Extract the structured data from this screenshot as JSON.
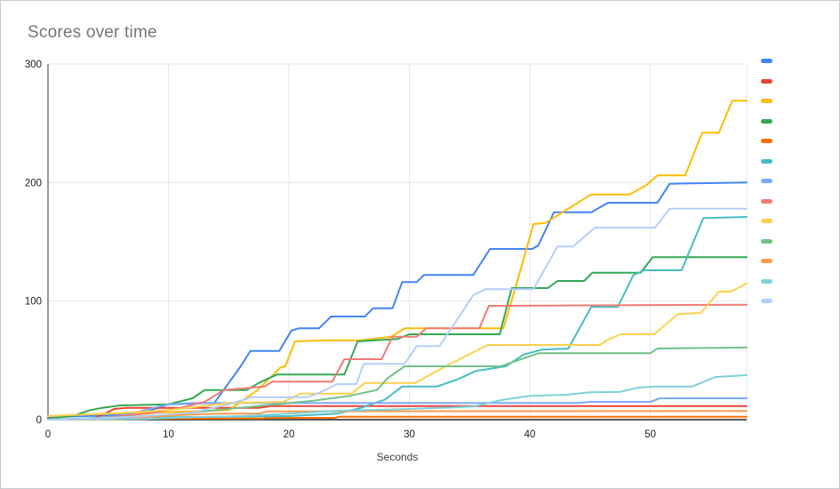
{
  "window": {
    "background": "#ffffff",
    "frame_border_color": "#c9cccf"
  },
  "chart_data": {
    "type": "line",
    "title": "Scores over time",
    "title_color": "#757575",
    "xlabel": "Seconds",
    "ylabel": "",
    "xlim": [
      0,
      58
    ],
    "ylim": [
      0,
      300
    ],
    "x_ticks": [
      0,
      10,
      20,
      30,
      40,
      50
    ],
    "y_ticks": [
      0,
      100,
      200,
      300
    ],
    "grid": true,
    "gridline_color": "#e6e6e6",
    "axis_line_color": "#333333",
    "baseline_color": "#212121",
    "tick_label_color": "#202124",
    "axis_title_color": "#3c4043",
    "legend_position": "right",
    "legend_labels_visible": false,
    "series": [
      {
        "name": "series-1-blue",
        "color": "#4285F4",
        "points": [
          [
            0,
            2
          ],
          [
            3,
            3
          ],
          [
            6,
            4
          ],
          [
            8,
            6
          ],
          [
            10,
            13
          ],
          [
            13.8,
            14
          ],
          [
            16,
            45
          ],
          [
            16.8,
            58
          ],
          [
            19.2,
            58
          ],
          [
            20.2,
            75
          ],
          [
            20.8,
            77
          ],
          [
            22.5,
            77
          ],
          [
            23.5,
            87
          ],
          [
            26.3,
            87
          ],
          [
            27,
            94
          ],
          [
            28.6,
            94
          ],
          [
            29.4,
            116
          ],
          [
            30.6,
            116
          ],
          [
            31.2,
            122
          ],
          [
            35.3,
            122
          ],
          [
            36.7,
            144
          ],
          [
            40.2,
            144
          ],
          [
            40.7,
            147
          ],
          [
            42,
            175
          ],
          [
            45.1,
            175
          ],
          [
            46.5,
            183
          ],
          [
            50.6,
            183
          ],
          [
            51.6,
            199
          ],
          [
            58,
            200
          ]
        ]
      },
      {
        "name": "series-2-red",
        "color": "#EA4335",
        "points": [
          [
            0,
            0
          ],
          [
            3.5,
            0
          ],
          [
            4.5,
            4
          ],
          [
            5.5,
            9
          ],
          [
            6.5,
            10
          ],
          [
            17.5,
            10
          ],
          [
            18.5,
            11.5
          ],
          [
            58,
            11.5
          ]
        ]
      },
      {
        "name": "series-3-yellow",
        "color": "#FBBC04",
        "points": [
          [
            0,
            3
          ],
          [
            2,
            4
          ],
          [
            5,
            5
          ],
          [
            9,
            6
          ],
          [
            15,
            8
          ],
          [
            17.4,
            25
          ],
          [
            19.3,
            44
          ],
          [
            19.7,
            45
          ],
          [
            20.5,
            66
          ],
          [
            23,
            67
          ],
          [
            26,
            67
          ],
          [
            28.5,
            70
          ],
          [
            29.6,
            77
          ],
          [
            37.8,
            77
          ],
          [
            39,
            118
          ],
          [
            40.3,
            165
          ],
          [
            41.3,
            166
          ],
          [
            45.1,
            190
          ],
          [
            48.3,
            190
          ],
          [
            49.7,
            198
          ],
          [
            50.6,
            206
          ],
          [
            52.9,
            206
          ],
          [
            54.3,
            242
          ],
          [
            55.7,
            242
          ],
          [
            56.8,
            269
          ],
          [
            58,
            269
          ]
        ]
      },
      {
        "name": "series-4-green",
        "color": "#34A853",
        "points": [
          [
            0,
            1
          ],
          [
            2,
            3
          ],
          [
            3.5,
            8
          ],
          [
            4.5,
            10
          ],
          [
            6,
            12
          ],
          [
            10,
            13
          ],
          [
            12,
            18
          ],
          [
            13,
            25
          ],
          [
            16.5,
            25
          ],
          [
            17.5,
            31
          ],
          [
            19,
            38
          ],
          [
            24.6,
            38
          ],
          [
            25.7,
            66
          ],
          [
            29,
            68
          ],
          [
            30,
            72
          ],
          [
            37.5,
            72
          ],
          [
            38.5,
            111
          ],
          [
            41.5,
            111
          ],
          [
            42.3,
            117
          ],
          [
            44.5,
            117
          ],
          [
            45.2,
            124
          ],
          [
            49.2,
            124
          ],
          [
            50.2,
            137
          ],
          [
            58,
            137
          ]
        ]
      },
      {
        "name": "series-5-orange",
        "color": "#FF6D01",
        "points": [
          [
            0,
            0
          ],
          [
            5,
            0.5
          ],
          [
            10,
            1
          ],
          [
            17.8,
            1
          ],
          [
            18.2,
            1.5
          ],
          [
            23.8,
            1.5
          ],
          [
            24.2,
            2.5
          ],
          [
            58,
            2.5
          ]
        ]
      },
      {
        "name": "series-6-teal",
        "color": "#46BDC6",
        "points": [
          [
            0,
            0
          ],
          [
            5,
            1
          ],
          [
            10,
            2
          ],
          [
            15,
            2.5
          ],
          [
            20,
            3
          ],
          [
            24,
            5
          ],
          [
            26,
            10
          ],
          [
            28,
            17
          ],
          [
            29.4,
            28
          ],
          [
            32.3,
            28
          ],
          [
            34,
            34
          ],
          [
            35.5,
            41
          ],
          [
            38,
            45
          ],
          [
            39.5,
            55
          ],
          [
            41,
            59
          ],
          [
            43.2,
            60
          ],
          [
            45.1,
            95
          ],
          [
            47.3,
            95
          ],
          [
            48.6,
            122
          ],
          [
            49.5,
            126
          ],
          [
            52.6,
            126
          ],
          [
            54.4,
            170
          ],
          [
            58,
            171
          ]
        ]
      },
      {
        "name": "series-7-light-blue",
        "color": "#7BAAF7",
        "points": [
          [
            0,
            0
          ],
          [
            3,
            1
          ],
          [
            6,
            3
          ],
          [
            8,
            8
          ],
          [
            10,
            13
          ],
          [
            12,
            14
          ],
          [
            44,
            14
          ],
          [
            45,
            15
          ],
          [
            50,
            15
          ],
          [
            50.8,
            18
          ],
          [
            58,
            18
          ]
        ]
      },
      {
        "name": "series-8-light-red",
        "color": "#F07B72",
        "points": [
          [
            0,
            0
          ],
          [
            4,
            1
          ],
          [
            6,
            3
          ],
          [
            9,
            6
          ],
          [
            11,
            10
          ],
          [
            13,
            15
          ],
          [
            14.6,
            25
          ],
          [
            18,
            28
          ],
          [
            18.6,
            32
          ],
          [
            23.6,
            32
          ],
          [
            24.6,
            51
          ],
          [
            27.7,
            51
          ],
          [
            28.6,
            70
          ],
          [
            30.6,
            70
          ],
          [
            31.4,
            77
          ],
          [
            35.8,
            77
          ],
          [
            36.6,
            96
          ],
          [
            58,
            97
          ]
        ]
      },
      {
        "name": "series-9-light-yellow",
        "color": "#FCD04F",
        "points": [
          [
            0,
            3
          ],
          [
            2,
            4
          ],
          [
            5,
            5
          ],
          [
            10,
            8
          ],
          [
            15,
            14
          ],
          [
            19.5,
            15
          ],
          [
            21,
            22
          ],
          [
            25.2,
            22
          ],
          [
            26.3,
            31
          ],
          [
            30.5,
            31
          ],
          [
            33,
            45
          ],
          [
            36.5,
            63
          ],
          [
            45.8,
            63
          ],
          [
            46.4,
            67
          ],
          [
            47.5,
            72
          ],
          [
            50.3,
            72
          ],
          [
            52.3,
            89
          ],
          [
            54.2,
            90
          ],
          [
            55.7,
            108
          ],
          [
            56.7,
            108
          ],
          [
            58,
            115
          ]
        ]
      },
      {
        "name": "series-10-light-green",
        "color": "#71C287",
        "points": [
          [
            0,
            0
          ],
          [
            3,
            1
          ],
          [
            6,
            2
          ],
          [
            10,
            4
          ],
          [
            14,
            8
          ],
          [
            18,
            12
          ],
          [
            22,
            16
          ],
          [
            25,
            20
          ],
          [
            27.3,
            25
          ],
          [
            28.2,
            35
          ],
          [
            29.6,
            45
          ],
          [
            37.6,
            45
          ],
          [
            40.7,
            56
          ],
          [
            50,
            56
          ],
          [
            50.6,
            60
          ],
          [
            58,
            61
          ]
        ]
      },
      {
        "name": "series-11-light-orange",
        "color": "#FF994D",
        "points": [
          [
            0,
            0
          ],
          [
            6,
            0
          ],
          [
            8,
            2
          ],
          [
            11,
            4
          ],
          [
            14,
            5
          ],
          [
            17.5,
            5
          ],
          [
            18.2,
            7
          ],
          [
            58,
            7.3
          ]
        ]
      },
      {
        "name": "series-12-light-teal",
        "color": "#7ED1D7",
        "points": [
          [
            0,
            0
          ],
          [
            8,
            0.5
          ],
          [
            12,
            2
          ],
          [
            16,
            3
          ],
          [
            20,
            5
          ],
          [
            24,
            7.5
          ],
          [
            30,
            9
          ],
          [
            34,
            10.5
          ],
          [
            35.3,
            11
          ],
          [
            37.6,
            16.5
          ],
          [
            40,
            20
          ],
          [
            43,
            21
          ],
          [
            45,
            23
          ],
          [
            47.5,
            23.5
          ],
          [
            49,
            27
          ],
          [
            50.3,
            28
          ],
          [
            53.5,
            28
          ],
          [
            55.4,
            36
          ],
          [
            58,
            37.5
          ]
        ]
      },
      {
        "name": "series-13-pale-blue",
        "color": "#B3CEFB",
        "points": [
          [
            0,
            0
          ],
          [
            4,
            1
          ],
          [
            8,
            3
          ],
          [
            12,
            6
          ],
          [
            15,
            13
          ],
          [
            16.9,
            19
          ],
          [
            21.5,
            19
          ],
          [
            22.5,
            22.5
          ],
          [
            24,
            30
          ],
          [
            25.6,
            30
          ],
          [
            26.2,
            47
          ],
          [
            29.6,
            47
          ],
          [
            30.6,
            62
          ],
          [
            32.5,
            62
          ],
          [
            35.3,
            105
          ],
          [
            36.3,
            110
          ],
          [
            40.3,
            110
          ],
          [
            42.3,
            146
          ],
          [
            43.6,
            146
          ],
          [
            45.4,
            162
          ],
          [
            50.4,
            162
          ],
          [
            51.6,
            178
          ],
          [
            58,
            178
          ]
        ]
      }
    ]
  }
}
